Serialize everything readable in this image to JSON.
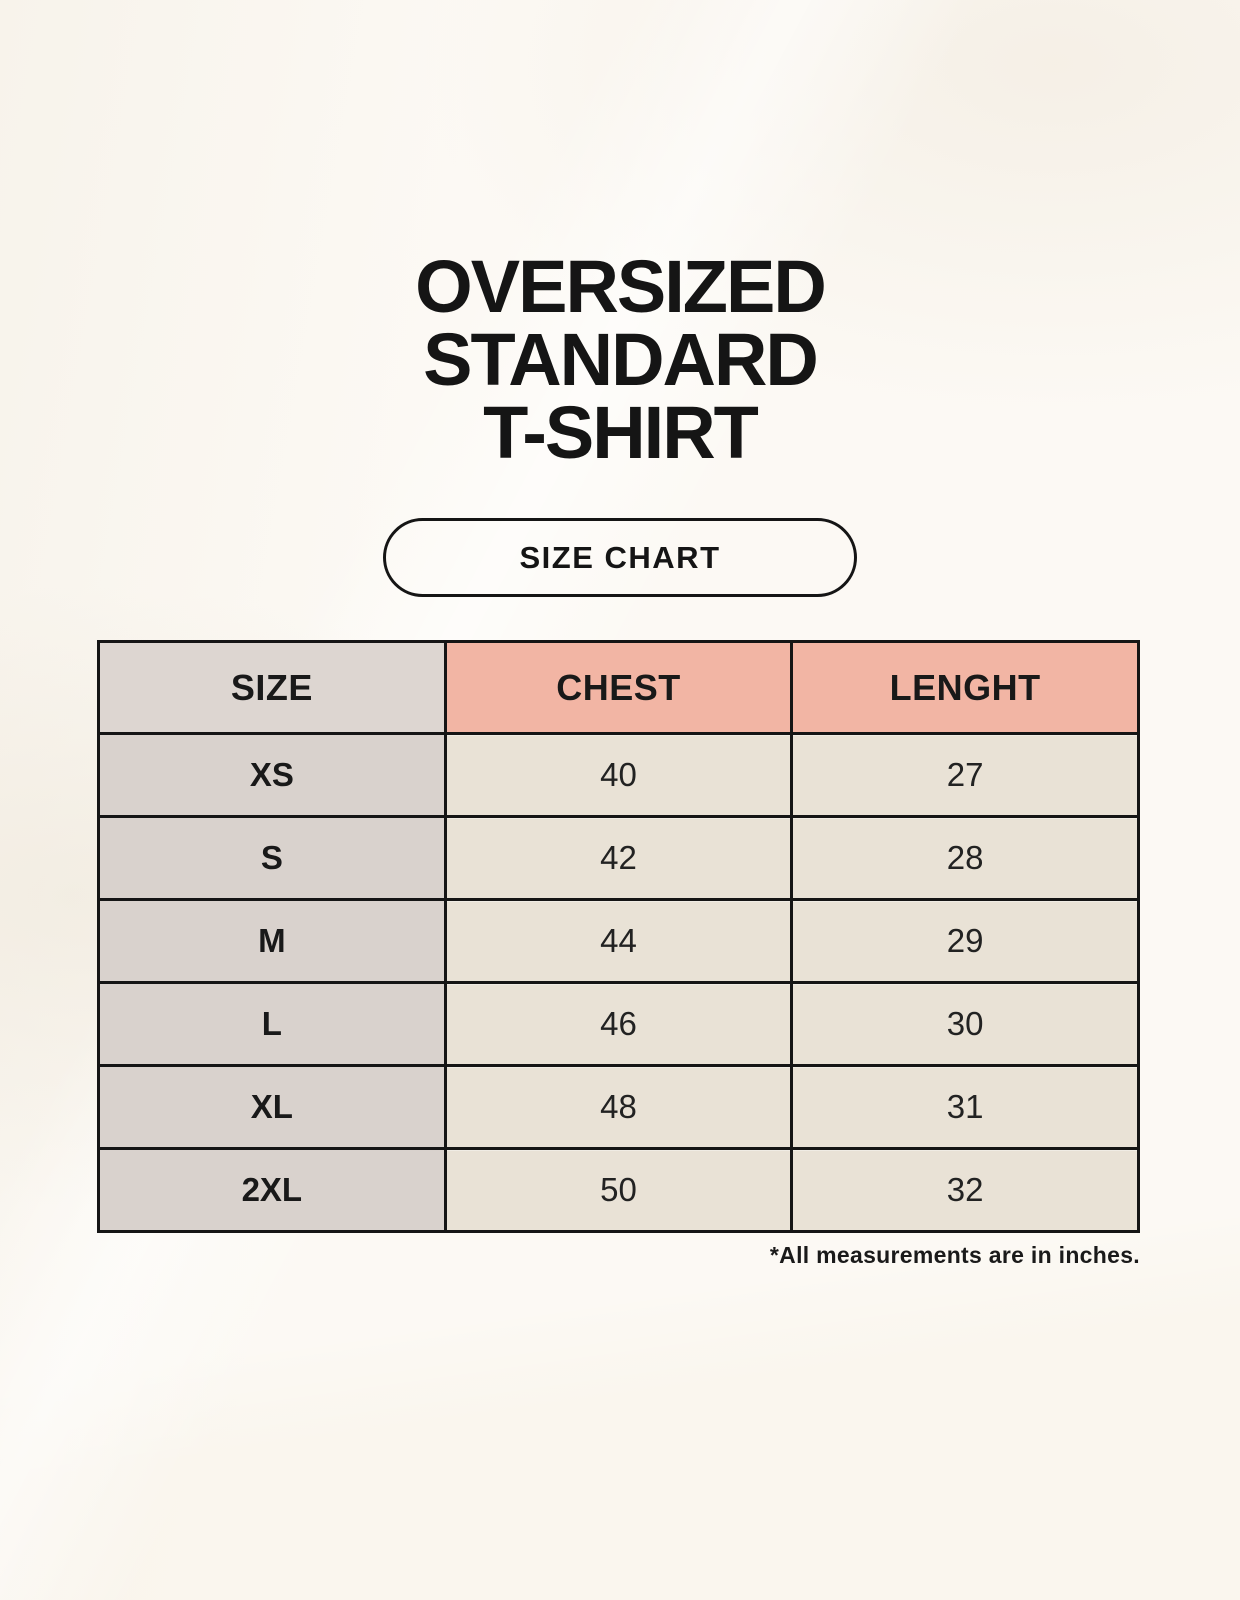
{
  "page": {
    "title_lines": [
      "OVERSIZED",
      "STANDARD",
      "T-SHIRT"
    ],
    "size_chart_button": "SIZE CHART",
    "footnote": "*All measurements are in inches."
  },
  "colors": {
    "background": "#faf6ee",
    "header_size_bg": "#ddd6d1",
    "header_measure_bg": "#f2b5a4",
    "row_label_bg": "#d9d2cd",
    "value_cell_bg": "#e9e2d6",
    "table_border": "#151515",
    "text": "#1c1c1c"
  },
  "chart_data": {
    "type": "table",
    "title": "OVERSIZED STANDARD T-SHIRT",
    "subtitle": "SIZE CHART",
    "columns": [
      "SIZE",
      "CHEST",
      "LENGHT"
    ],
    "rows": [
      [
        "XS",
        "40",
        "27"
      ],
      [
        "S",
        "42",
        "28"
      ],
      [
        "M",
        "44",
        "29"
      ],
      [
        "L",
        "46",
        "30"
      ],
      [
        "XL",
        "48",
        "31"
      ],
      [
        "2XL",
        "50",
        "32"
      ]
    ],
    "units": "inches",
    "note": "*All measurements are in inches."
  }
}
